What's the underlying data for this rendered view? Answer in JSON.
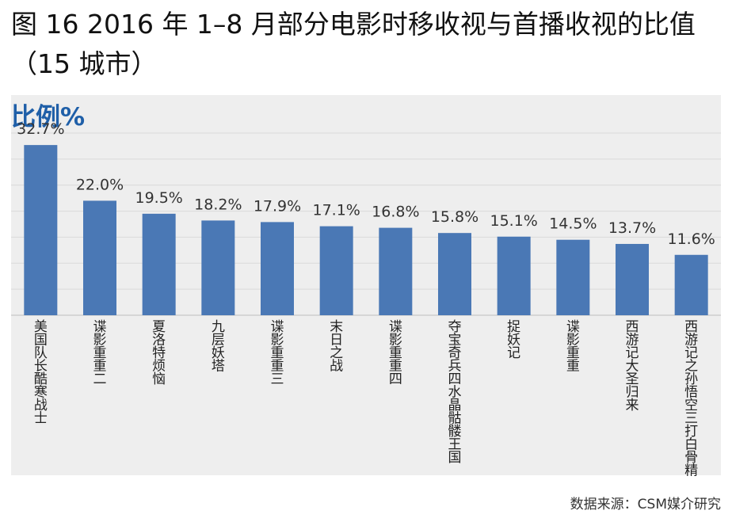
{
  "figure_title": "图 16 2016 年 1–8 月部分电影时移收视与首播收视的比值（15 城市）",
  "source": "数据来源：CSM媒介研究",
  "chart_data": {
    "type": "bar",
    "ylabel": "比例%",
    "ylim": [
      0,
      35
    ],
    "grid": true,
    "bar_color": "#4a78b5",
    "categories": [
      "美国队长酷寒战士",
      "谍影重重二",
      "夏洛特烦恼",
      "九层妖塔",
      "谍影重重三",
      "末日之战",
      "谍影重重四",
      "夺宝奇兵四水晶骷髅王国",
      "捉妖记",
      "谍影重重",
      "西游记大圣归来",
      "西游记之孙悟空三打白骨精"
    ],
    "values": [
      32.7,
      22.0,
      19.5,
      18.2,
      17.9,
      17.1,
      16.8,
      15.8,
      15.1,
      14.5,
      13.7,
      11.6
    ],
    "value_labels": [
      "32.7%",
      "22.0%",
      "19.5%",
      "18.2%",
      "17.9%",
      "17.1%",
      "16.8%",
      "15.8%",
      "15.1%",
      "14.5%",
      "13.7%",
      "11.6%"
    ]
  }
}
